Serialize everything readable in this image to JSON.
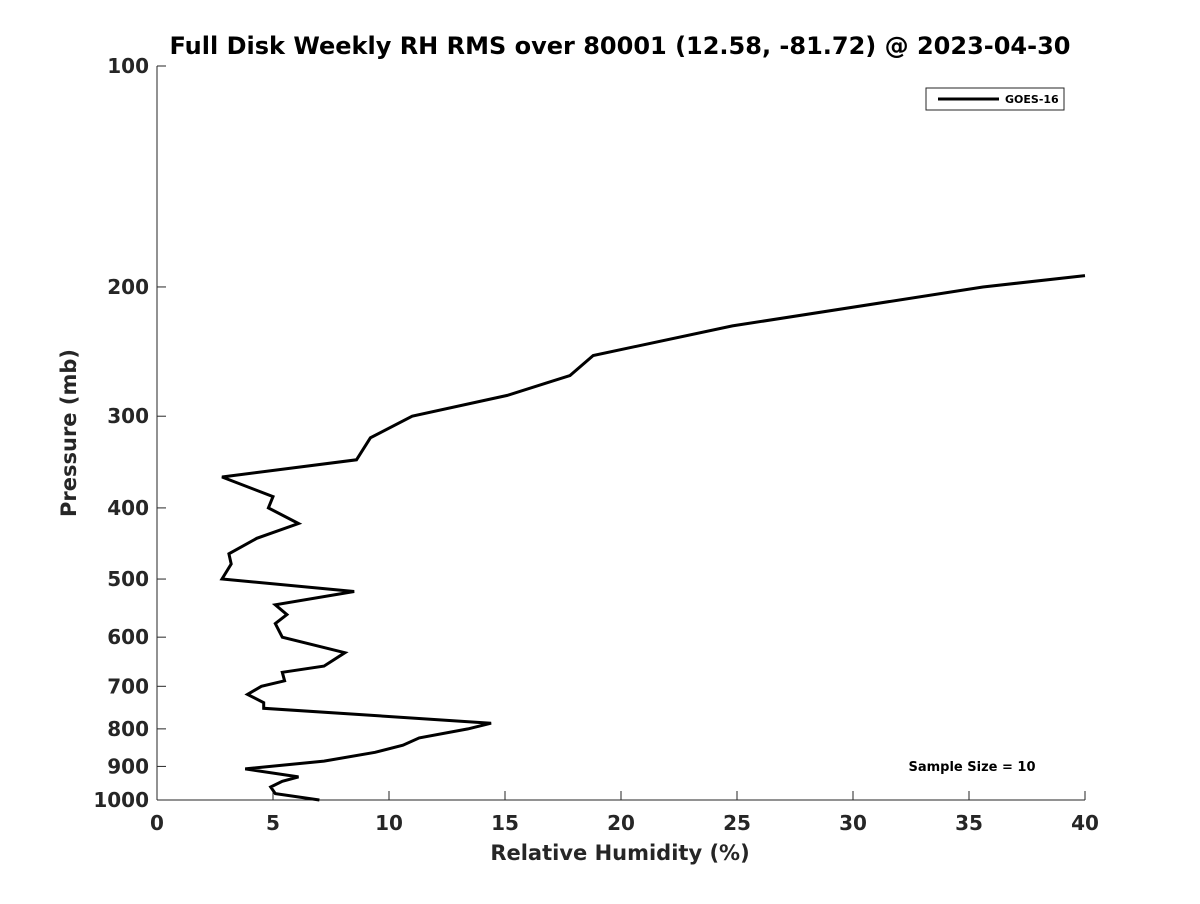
{
  "chart_data": {
    "type": "line",
    "title": "Full Disk Weekly RH RMS over 80001 (12.58, -81.72) @ 2023-04-30",
    "xlabel": "Relative Humidity (%)",
    "ylabel": "Pressure (mb)",
    "xlim": [
      0,
      40
    ],
    "ylim": [
      100,
      1000
    ],
    "y_scale": "log",
    "y_reversed": true,
    "grid": false,
    "x_ticks": [
      0,
      5,
      10,
      15,
      20,
      25,
      30,
      35,
      40
    ],
    "y_ticks": [
      100,
      200,
      300,
      400,
      500,
      600,
      700,
      800,
      900,
      1000
    ],
    "legend": {
      "location": "top-right",
      "entries": [
        "GOES-16"
      ]
    },
    "annotation": "Sample Size = 10",
    "series": [
      {
        "name": "GOES-16",
        "color": "#000000",
        "points": [
          [
            40.0,
            193
          ],
          [
            35.6,
            200
          ],
          [
            24.8,
            226
          ],
          [
            18.8,
            248
          ],
          [
            17.8,
            264
          ],
          [
            15.1,
            281
          ],
          [
            11.0,
            300
          ],
          [
            9.2,
            321
          ],
          [
            8.6,
            344
          ],
          [
            2.8,
            363
          ],
          [
            5.0,
            386
          ],
          [
            4.8,
            400
          ],
          [
            6.1,
            420
          ],
          [
            4.3,
            440
          ],
          [
            3.1,
            462
          ],
          [
            3.2,
            477
          ],
          [
            2.8,
            500
          ],
          [
            8.5,
            520
          ],
          [
            5.1,
            542
          ],
          [
            5.6,
            559
          ],
          [
            5.1,
            575
          ],
          [
            5.4,
            600
          ],
          [
            8.1,
            630
          ],
          [
            7.2,
            657
          ],
          [
            5.4,
            670
          ],
          [
            5.5,
            688
          ],
          [
            4.5,
            700
          ],
          [
            3.9,
            718
          ],
          [
            4.6,
            737
          ],
          [
            4.6,
            750
          ],
          [
            14.4,
            786
          ],
          [
            13.4,
            800
          ],
          [
            11.3,
            823
          ],
          [
            10.6,
            842
          ],
          [
            9.4,
            861
          ],
          [
            7.2,
            885
          ],
          [
            3.8,
            907
          ],
          [
            6.1,
            930
          ],
          [
            5.4,
            943
          ],
          [
            4.9,
            960
          ],
          [
            5.1,
            980
          ],
          [
            7.0,
            1000
          ]
        ]
      }
    ]
  }
}
